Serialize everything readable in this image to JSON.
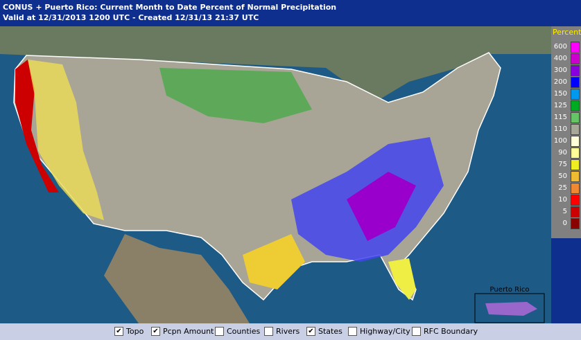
{
  "header": {
    "title": "CONUS + Puerto Rico: Current Month to Date Percent of Normal Precipitation",
    "subtitle": "Valid at 12/31/2013 1200 UTC - Created 12/31/13 21:37 UTC"
  },
  "legend": {
    "title": "Percent",
    "items": [
      {
        "label": "600",
        "color": "#ff00ff"
      },
      {
        "label": "400",
        "color": "#cc00cc"
      },
      {
        "label": "300",
        "color": "#8800dd"
      },
      {
        "label": "200",
        "color": "#0000ff"
      },
      {
        "label": "150",
        "color": "#0099ee"
      },
      {
        "label": "125",
        "color": "#00aa22"
      },
      {
        "label": "115",
        "color": "#66c466"
      },
      {
        "label": "110",
        "color": "#a8a898"
      },
      {
        "label": "100",
        "color": "#ffffd8"
      },
      {
        "label": "90",
        "color": "#ffff99"
      },
      {
        "label": "75",
        "color": "#eeee22"
      },
      {
        "label": "50",
        "color": "#eebb33"
      },
      {
        "label": "25",
        "color": "#ee8833"
      },
      {
        "label": "10",
        "color": "#ff0000"
      },
      {
        "label": "5",
        "color": "#cc0000"
      },
      {
        "label": "0",
        "color": "#880000"
      }
    ]
  },
  "inset": {
    "label": "Puerto Rico"
  },
  "layers": [
    {
      "label": "Topo",
      "checked": true
    },
    {
      "label": "Pcpn Amount",
      "checked": true
    },
    {
      "label": "Counties",
      "checked": false
    },
    {
      "label": "Rivers",
      "checked": false
    },
    {
      "label": "States",
      "checked": true
    },
    {
      "label": "Highway/City",
      "checked": false
    },
    {
      "label": "RFC Boundary",
      "checked": false
    }
  ]
}
